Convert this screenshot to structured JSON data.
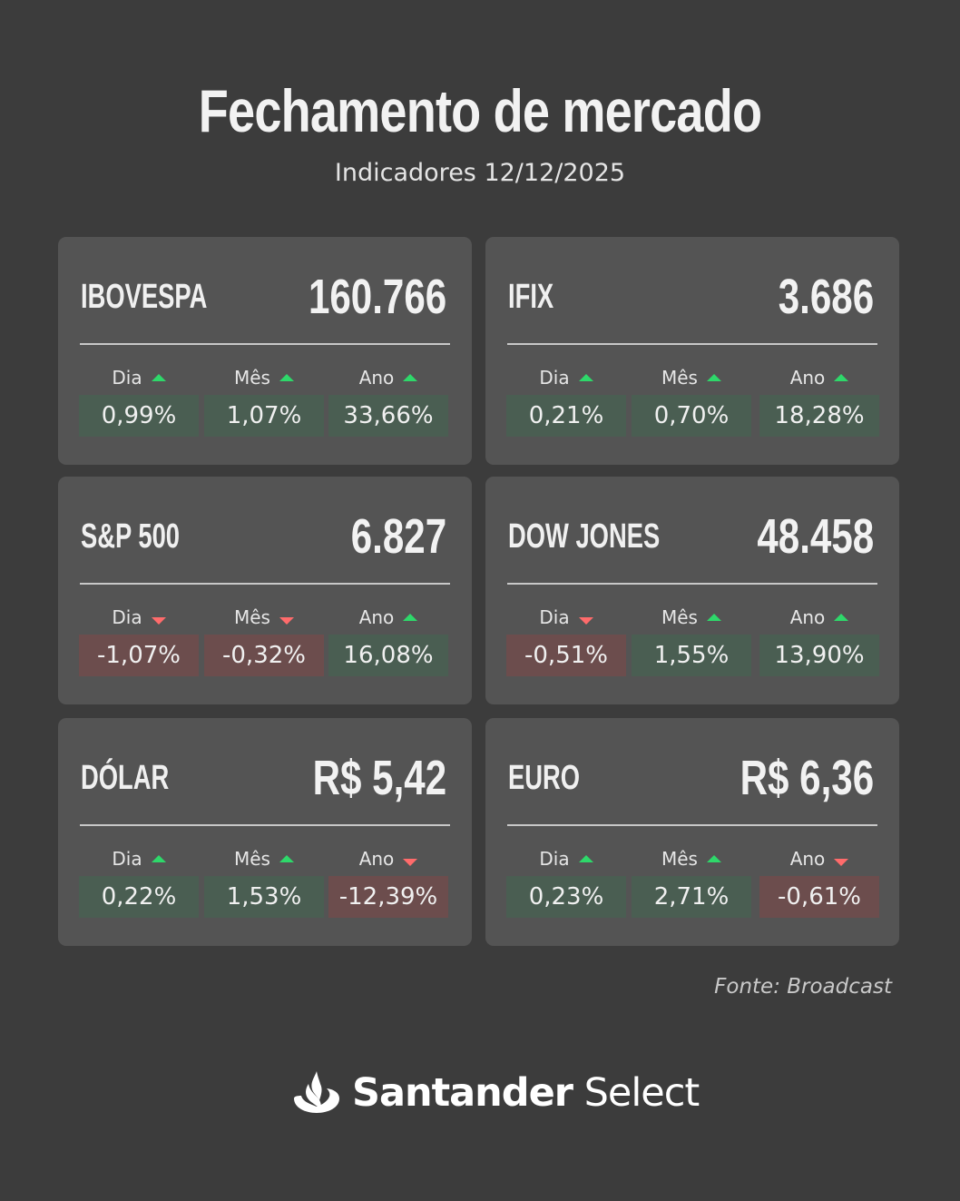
{
  "header": {
    "title": "Fechamento de mercado",
    "subtitle": "Indicadores 12/12/2025"
  },
  "colors": {
    "background": "#3c3c3c",
    "card": "#545454",
    "positive": "#4a5e52",
    "negative": "#6c4d4d",
    "arrow_up": "#2ed86a",
    "arrow_down": "#ff6b6b"
  },
  "cards": [
    {
      "name": "IBOVESPA",
      "value": "160.766",
      "metrics": [
        {
          "label": "Dia",
          "direction": "up",
          "value": "0,99%"
        },
        {
          "label": "Mês",
          "direction": "up",
          "value": "1,07%"
        },
        {
          "label": "Ano",
          "direction": "up",
          "value": "33,66%"
        }
      ]
    },
    {
      "name": "IFIX",
      "value": "3.686",
      "metrics": [
        {
          "label": "Dia",
          "direction": "up",
          "value": "0,21%"
        },
        {
          "label": "Mês",
          "direction": "up",
          "value": "0,70%"
        },
        {
          "label": "Ano",
          "direction": "up",
          "value": "18,28%"
        }
      ]
    },
    {
      "name": "S&P 500",
      "value": "6.827",
      "metrics": [
        {
          "label": "Dia",
          "direction": "down",
          "value": "-1,07%"
        },
        {
          "label": "Mês",
          "direction": "down",
          "value": "-0,32%"
        },
        {
          "label": "Ano",
          "direction": "up",
          "value": "16,08%"
        }
      ]
    },
    {
      "name": "DOW JONES",
      "value": "48.458",
      "metrics": [
        {
          "label": "Dia",
          "direction": "down",
          "value": "-0,51%"
        },
        {
          "label": "Mês",
          "direction": "up",
          "value": "1,55%"
        },
        {
          "label": "Ano",
          "direction": "up",
          "value": "13,90%"
        }
      ]
    },
    {
      "name": "DÓLAR",
      "value": "R$ 5,42",
      "metrics": [
        {
          "label": "Dia",
          "direction": "up",
          "value": "0,22%"
        },
        {
          "label": "Mês",
          "direction": "up",
          "value": "1,53%"
        },
        {
          "label": "Ano",
          "direction": "down",
          "value": "-12,39%"
        }
      ]
    },
    {
      "name": "EURO",
      "value": "R$ 6,36",
      "metrics": [
        {
          "label": "Dia",
          "direction": "up",
          "value": "0,23%"
        },
        {
          "label": "Mês",
          "direction": "up",
          "value": "2,71%"
        },
        {
          "label": "Ano",
          "direction": "down",
          "value": "-0,61%"
        }
      ]
    }
  ],
  "source": "Fonte: Broadcast",
  "footer": {
    "brand_bold": "Santander",
    "brand_light": "Select",
    "logo_icon": "santander-flame-icon"
  }
}
